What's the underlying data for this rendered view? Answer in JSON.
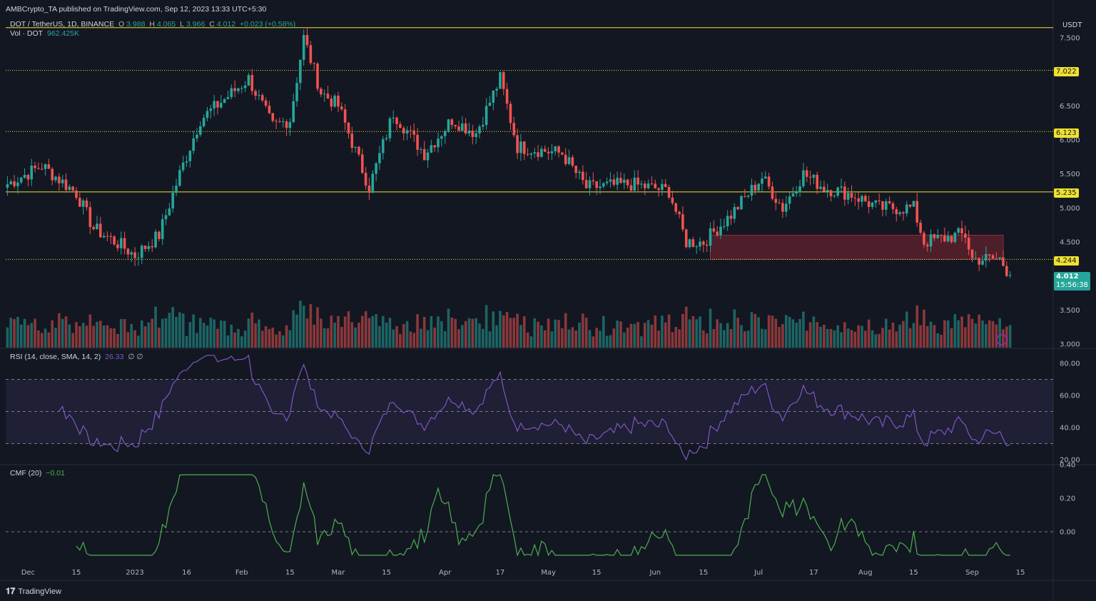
{
  "header": {
    "publisher": "AMBCrypto_TA published on TradingView.com, Sep 12, 2023 13:33 UTC+5:30",
    "symbol": "DOT / TetherUS, 1D, BINANCE",
    "ohlc_o_label": "O",
    "ohlc_o": "3.988",
    "ohlc_h_label": "H",
    "ohlc_h": "4.065",
    "ohlc_l_label": "L",
    "ohlc_l": "3.966",
    "ohlc_c_label": "C",
    "ohlc_c": "4.012",
    "change": "+0.023 (+0.58%)",
    "vol_label": "Vol · DOT",
    "vol_value": "962.425K"
  },
  "price_axis": {
    "currency": "USDT",
    "ticks": [
      "7.500",
      "6.500",
      "6.000",
      "5.500",
      "5.000",
      "4.500",
      "3.500",
      "3.000"
    ],
    "level_tags": [
      "7.022",
      "6.123",
      "5.235",
      "4.244"
    ],
    "current_price": "4.012",
    "countdown": "15:56:38"
  },
  "rsi": {
    "label": "RSI (14, close, SMA, 14, 2)",
    "value": "26.33",
    "extra": "∅ ∅",
    "ticks": [
      "80.00",
      "60.00",
      "40.00",
      "20.00"
    ]
  },
  "cmf": {
    "label": "CMF (20)",
    "value": "−0.01",
    "ticks": [
      "0.40",
      "0.20",
      "0.00"
    ]
  },
  "time_axis": [
    "Dec",
    "15",
    "2023",
    "16",
    "Feb",
    "15",
    "Mar",
    "15",
    "Apr",
    "17",
    "May",
    "15",
    "Jun",
    "15",
    "Jul",
    "17",
    "Aug",
    "15",
    "Sep",
    "15"
  ],
  "footer": {
    "brand": "TradingView"
  },
  "colors": {
    "up": "#26a69a",
    "down": "#ef5350",
    "level": "#f0e130",
    "rsi": "#7e57c2",
    "cmf": "#4caf50",
    "bg": "#131722"
  },
  "chart_data": {
    "type": "candlestick",
    "title": "DOT / TetherUS, 1D, BINANCE",
    "ylim": [
      3.0,
      7.7
    ],
    "x_range": [
      "2023-11-25",
      "2023-09-25"
    ],
    "key_levels": [
      7.65,
      7.022,
      6.123,
      5.235,
      4.244
    ],
    "supply_zone": {
      "low": 4.244,
      "high": 4.6,
      "start": "2023-06-17",
      "end": "2023-09-10"
    },
    "close_path_anchors": [
      {
        "date": "2022-11-25",
        "close": 5.35
      },
      {
        "date": "2022-12-05",
        "close": 5.62
      },
      {
        "date": "2022-12-15",
        "close": 5.22
      },
      {
        "date": "2022-12-20",
        "close": 4.7
      },
      {
        "date": "2022-12-28",
        "close": 4.45
      },
      {
        "date": "2023-01-01",
        "close": 4.3
      },
      {
        "date": "2023-01-08",
        "close": 4.6
      },
      {
        "date": "2023-01-14",
        "close": 5.5
      },
      {
        "date": "2023-01-20",
        "close": 6.3
      },
      {
        "date": "2023-01-27",
        "close": 6.6
      },
      {
        "date": "2023-02-03",
        "close": 6.9
      },
      {
        "date": "2023-02-10",
        "close": 6.2
      },
      {
        "date": "2023-02-15",
        "close": 6.3
      },
      {
        "date": "2023-02-19",
        "close": 7.5
      },
      {
        "date": "2023-02-24",
        "close": 6.7
      },
      {
        "date": "2023-03-01",
        "close": 6.5
      },
      {
        "date": "2023-03-10",
        "close": 5.3
      },
      {
        "date": "2023-03-17",
        "close": 6.4
      },
      {
        "date": "2023-03-26",
        "close": 5.8
      },
      {
        "date": "2023-04-03",
        "close": 6.3
      },
      {
        "date": "2023-04-10",
        "close": 6.1
      },
      {
        "date": "2023-04-17",
        "close": 6.9
      },
      {
        "date": "2023-04-22",
        "close": 5.9
      },
      {
        "date": "2023-05-05",
        "close": 5.8
      },
      {
        "date": "2023-05-12",
        "close": 5.3
      },
      {
        "date": "2023-05-25",
        "close": 5.35
      },
      {
        "date": "2023-06-05",
        "close": 5.25
      },
      {
        "date": "2023-06-10",
        "close": 4.5
      },
      {
        "date": "2023-06-15",
        "close": 4.5
      },
      {
        "date": "2023-06-23",
        "close": 4.9
      },
      {
        "date": "2023-07-02",
        "close": 5.45
      },
      {
        "date": "2023-07-08",
        "close": 5.0
      },
      {
        "date": "2023-07-14",
        "close": 5.5
      },
      {
        "date": "2023-07-20",
        "close": 5.3
      },
      {
        "date": "2023-07-28",
        "close": 5.2
      },
      {
        "date": "2023-08-05",
        "close": 5.0
      },
      {
        "date": "2023-08-15",
        "close": 5.0
      },
      {
        "date": "2023-08-18",
        "close": 4.5
      },
      {
        "date": "2023-08-28",
        "close": 4.6
      },
      {
        "date": "2023-08-30",
        "close": 4.6
      },
      {
        "date": "2023-09-01",
        "close": 4.25
      },
      {
        "date": "2023-09-09",
        "close": 4.25
      },
      {
        "date": "2023-09-12",
        "close": 4.012
      }
    ]
  }
}
